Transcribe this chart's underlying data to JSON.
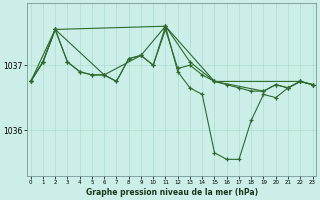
{
  "background_color": "#cceee8",
  "grid_color": "#aaddcc",
  "line_color": "#2d6a2d",
  "xlabel": "Graphe pression niveau de la mer (hPa)",
  "yticks": [
    1036,
    1037
  ],
  "xticks": [
    0,
    1,
    2,
    3,
    4,
    5,
    6,
    7,
    8,
    9,
    10,
    11,
    12,
    13,
    14,
    15,
    16,
    17,
    18,
    19,
    20,
    21,
    22,
    23
  ],
  "xlim": [
    -0.3,
    23.3
  ],
  "ylim": [
    1035.3,
    1037.95
  ],
  "series1_y": [
    1036.75,
    1037.05,
    1037.55,
    1037.05,
    1036.9,
    1036.85,
    1036.85,
    1036.75,
    1037.1,
    1037.15,
    1037.0,
    1037.55,
    1036.95,
    1037.0,
    1036.85,
    1036.75,
    1036.7,
    1036.65,
    1036.6,
    1036.6,
    1036.7,
    1036.65,
    1036.75,
    1036.7
  ],
  "series2_y": [
    1036.75,
    1037.05,
    1037.55,
    1037.05,
    1036.9,
    1036.85,
    1036.85,
    1036.75,
    1037.1,
    1037.15,
    1037.0,
    1037.6,
    1036.9,
    1036.65,
    1036.55,
    1035.65,
    1035.55,
    1035.55,
    1036.15,
    1036.55,
    1036.5,
    1036.65,
    1036.75,
    1036.7
  ],
  "series3_x": [
    0,
    1,
    2,
    6,
    9,
    11,
    13,
    15,
    19,
    20,
    21,
    22,
    23
  ],
  "series3_y": [
    1036.75,
    1037.05,
    1037.55,
    1036.85,
    1037.15,
    1037.6,
    1037.05,
    1036.75,
    1036.6,
    1036.7,
    1036.65,
    1036.75,
    1036.7
  ],
  "series4_x": [
    0,
    2,
    11,
    15,
    22,
    23
  ],
  "series4_y": [
    1036.75,
    1037.55,
    1037.6,
    1036.75,
    1036.75,
    1036.7
  ]
}
